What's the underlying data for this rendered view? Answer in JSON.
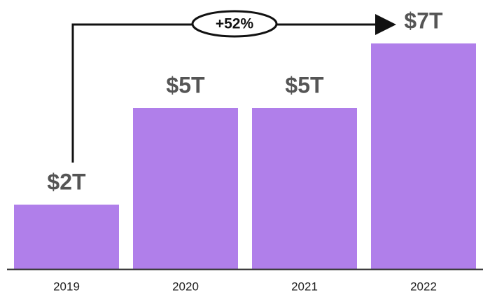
{
  "chart_data": {
    "type": "bar",
    "categories": [
      "2019",
      "2020",
      "2021",
      "2022"
    ],
    "values": [
      2,
      5,
      5,
      7
    ],
    "value_labels": [
      "$2T",
      "$5T",
      "$5T",
      "$7T"
    ],
    "color": "#b07fea",
    "annotation": "+52%"
  }
}
